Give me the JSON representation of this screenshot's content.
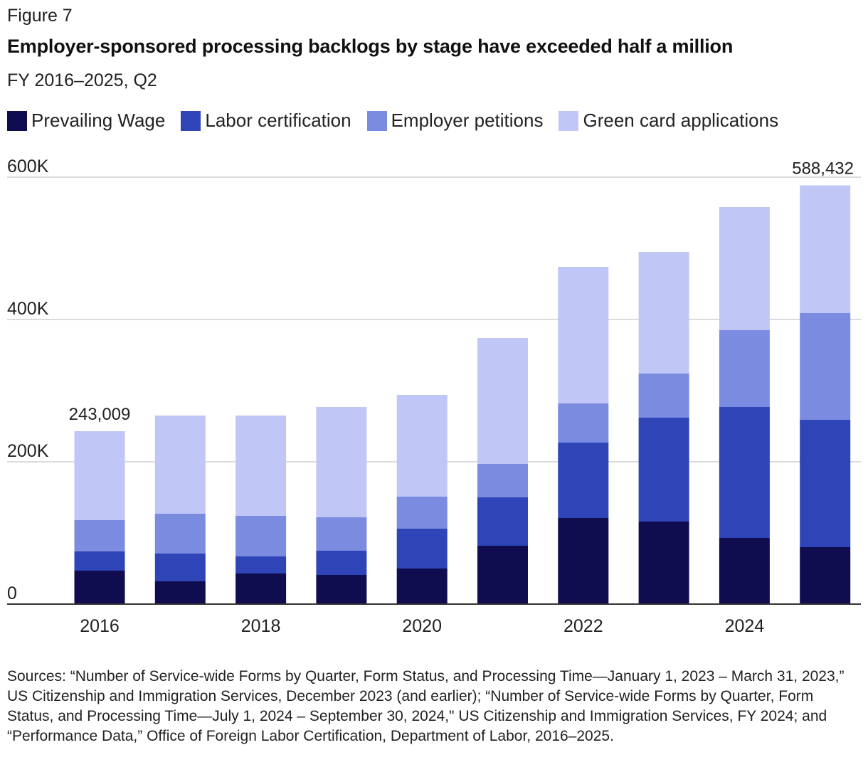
{
  "figure_label": "Figure 7",
  "source_note": "Sources: “Number of Service-wide Forms by Quarter, Form Status, and Processing Time—January 1, 2023 – March 31, 2023,” US Citizenship and Immigration Services, December 2023 (and earlier); “Number of Service-wide Forms by Quarter, Form Status, and Processing Time—July 1, 2024 – September 30, 2024,\" US Citizenship and Immigration Services, FY 2024; and “Performance Data,” Office of Foreign Labor Certification, Department of Labor, 2016–2025.",
  "chart_data": {
    "type": "bar",
    "stacked": true,
    "title": "Employer-sponsored processing backlogs by stage have exceeded half a million",
    "subtitle": "FY 2016–2025, Q2",
    "xlabel": "",
    "ylabel": "",
    "ylim": [
      0,
      600000
    ],
    "y_ticks": [
      0,
      200000,
      400000,
      600000
    ],
    "y_tick_labels": [
      "0",
      "200K",
      "400K",
      "600K"
    ],
    "grid": true,
    "legend_position": "top-left",
    "categories": [
      "2016",
      "2017",
      "2018",
      "2019",
      "2020",
      "2021",
      "2022",
      "2023",
      "2024",
      "2025"
    ],
    "x_tick_labels": [
      "2016",
      "",
      "2018",
      "",
      "2020",
      "",
      "2022",
      "",
      "2024",
      ""
    ],
    "series": [
      {
        "name": "Prevailing Wage",
        "color": "#0f0d4f",
        "values": [
          47000,
          32000,
          43000,
          41000,
          50000,
          82000,
          121000,
          116000,
          93000,
          80000
        ]
      },
      {
        "name": "Labor certification",
        "color": "#2e44b7",
        "values": [
          27000,
          39000,
          24000,
          34000,
          56000,
          68000,
          106000,
          146000,
          184000,
          179000
        ]
      },
      {
        "name": "Employer petitions",
        "color": "#7b8be0",
        "values": [
          44000,
          56000,
          57000,
          47000,
          45000,
          47000,
          55000,
          62000,
          108000,
          150000
        ]
      },
      {
        "name": "Green card applications",
        "color": "#c0c7f7",
        "values": [
          125009,
          138000,
          141000,
          155000,
          143000,
          177000,
          192000,
          171000,
          173000,
          179432
        ]
      }
    ],
    "data_labels": [
      {
        "category": "2016",
        "text": "243,009"
      },
      {
        "category": "2025",
        "text": "588,432"
      }
    ]
  }
}
